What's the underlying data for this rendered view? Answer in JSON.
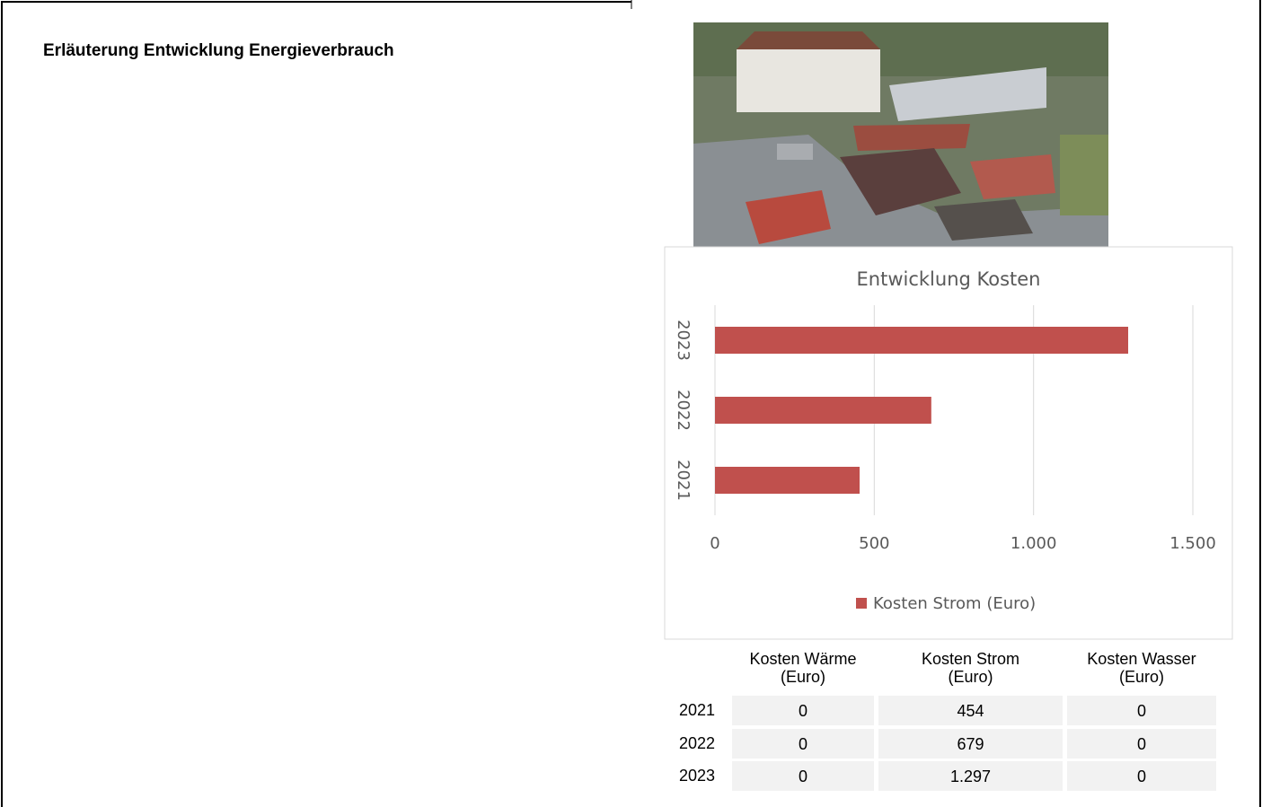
{
  "heading": "Erläuterung Entwicklung Energieverbrauch",
  "chart_data": {
    "type": "bar",
    "orientation": "horizontal",
    "title": "Entwicklung Kosten",
    "categories": [
      "2021",
      "2022",
      "2023"
    ],
    "series": [
      {
        "name": "Kosten Strom (Euro)",
        "color": "#c0504d",
        "values": [
          454,
          679,
          1297
        ]
      }
    ],
    "xlim": [
      0,
      1500
    ],
    "xticks": [
      0,
      500,
      {
        "value": 1000,
        "label": "1.000"
      },
      {
        "value": 1500,
        "label": "1.500"
      }
    ],
    "grid": true,
    "legend": "bottom"
  },
  "table": {
    "columns": [
      "Kosten Wärme (Euro)",
      "Kosten Strom (Euro)",
      "Kosten Wasser (Euro)"
    ],
    "rows": [
      {
        "label": "2021",
        "cells": [
          "0",
          "454",
          "0"
        ]
      },
      {
        "label": "2022",
        "cells": [
          "0",
          "679",
          "0"
        ]
      },
      {
        "label": "2023",
        "cells": [
          "0",
          "1.297",
          "0"
        ]
      }
    ]
  }
}
